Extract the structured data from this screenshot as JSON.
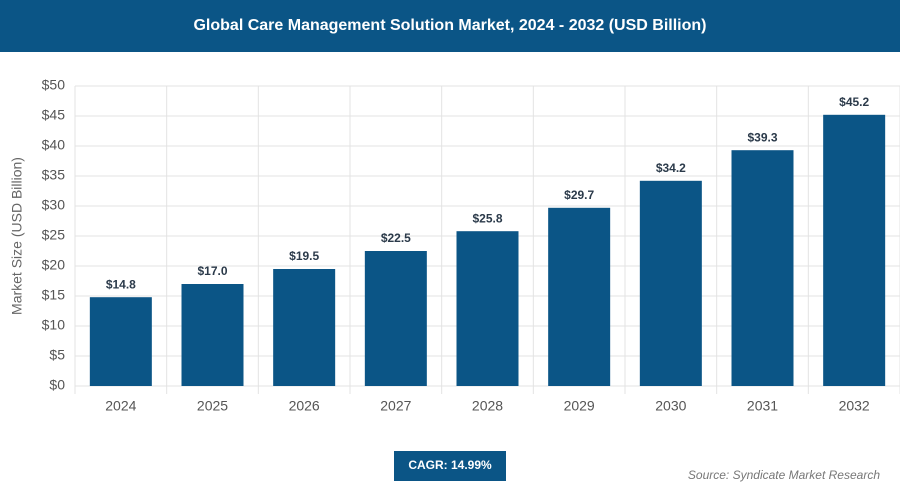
{
  "chart_data": {
    "type": "bar",
    "title": "Global Care Management Solution Market, 2024 - 2032 (USD Billion)",
    "y_label": "Market Size (USD Billion)",
    "categories": [
      "2024",
      "2025",
      "2026",
      "2027",
      "2028",
      "2029",
      "2030",
      "2031",
      "2032"
    ],
    "values": [
      14.8,
      17.0,
      19.5,
      22.5,
      25.8,
      29.7,
      34.2,
      39.3,
      45.2
    ],
    "value_labels": [
      "$14.8",
      "$17.0",
      "$19.5",
      "$22.5",
      "$25.8",
      "$29.7",
      "$34.2",
      "$39.3",
      "$45.2"
    ],
    "color": "#0b5586",
    "ylim": [
      0,
      50
    ],
    "yticks": [
      {
        "value": 0,
        "label": "$0"
      },
      {
        "value": 5,
        "label": "$5"
      },
      {
        "value": 10,
        "label": "$10"
      },
      {
        "value": 15,
        "label": "$15"
      },
      {
        "value": 20,
        "label": "$20"
      },
      {
        "value": 25,
        "label": "$25"
      },
      {
        "value": 30,
        "label": "$30"
      },
      {
        "value": 35,
        "label": "$35"
      },
      {
        "value": 40,
        "label": "$40"
      },
      {
        "value": 45,
        "label": "$45"
      },
      {
        "value": 50,
        "label": "$50"
      }
    ],
    "grid": true,
    "cagr": "CAGR: 14.99%",
    "source": "Source: Syndicate Market Research"
  }
}
